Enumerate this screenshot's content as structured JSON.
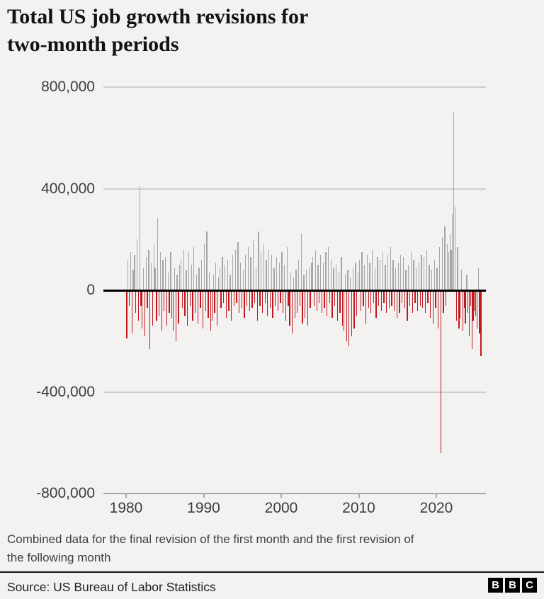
{
  "header": {
    "title_lines": [
      "Total US job growth revisions for",
      "two-month periods"
    ]
  },
  "footnote": {
    "lines": [
      "Combined data for the final revision of the first month and the first revision of",
      "the following month"
    ]
  },
  "footer": {
    "source": "Source: US Bureau of Labor Statistics",
    "logo_letters": [
      "B",
      "B",
      "C"
    ]
  },
  "colors": {
    "background": "#f3f2f1",
    "positive_bar": "#a6a5a3",
    "negative_bar": "#c0181e",
    "zero_line": "#000000",
    "gridline": "#cfcecc",
    "axis_bottom": "#a9a8a6"
  },
  "chart_data": {
    "type": "bar",
    "title": "Total US job growth revisions for two-month periods",
    "xlabel": "",
    "ylabel": "",
    "legend": "none",
    "grid": "horizontal",
    "x_axis": {
      "ticks": [
        1980,
        1990,
        2000,
        2010,
        2020
      ],
      "range_years": [
        1979.8,
        2026.2
      ]
    },
    "y_axis": {
      "ticks": [
        {
          "label": "800,000",
          "value": 800000
        },
        {
          "label": "400,000",
          "value": 400000
        },
        {
          "label": "0",
          "value": 0
        },
        {
          "label": "-400,000",
          "value": -400000
        },
        {
          "label": "-800,000",
          "value": -800000
        }
      ],
      "range": [
        -800000,
        800000
      ]
    },
    "series_unit": "jobs, thousands (two-month revision totals, estimated from pixels)",
    "start_year": 1980,
    "periods_per_year": 6,
    "positive_color": "#a6a5a3",
    "negative_color": "#c0181e",
    "values_thousands": [
      -190,
      120,
      -60,
      150,
      -170,
      80,
      140,
      -90,
      200,
      -120,
      410,
      -60,
      -150,
      90,
      -180,
      130,
      -70,
      160,
      -230,
      110,
      -140,
      180,
      90,
      -120,
      285,
      -100,
      150,
      -160,
      120,
      -80,
      130,
      -140,
      70,
      -90,
      150,
      -110,
      -160,
      90,
      -200,
      60,
      -130,
      100,
      120,
      -70,
      160,
      -100,
      80,
      -140,
      150,
      -60,
      100,
      -120,
      170,
      -90,
      60,
      -130,
      90,
      -70,
      120,
      -150,
      180,
      -80,
      230,
      -110,
      70,
      -160,
      -120,
      60,
      -90,
      110,
      -140,
      50,
      90,
      -70,
      130,
      -50,
      100,
      -110,
      120,
      -80,
      60,
      -120,
      140,
      -60,
      160,
      -50,
      190,
      -90,
      110,
      -70,
      80,
      -110,
      140,
      -60,
      170,
      -80,
      130,
      -70,
      200,
      -50,
      90,
      -120,
      230,
      -60,
      150,
      -90,
      180,
      -50,
      120,
      -100,
      160,
      -70,
      140,
      -110,
      90,
      -60,
      130,
      -80,
      110,
      -50,
      150,
      -90,
      100,
      -120,
      170,
      -60,
      -140,
      70,
      -170,
      50,
      -110,
      80,
      -90,
      120,
      -60,
      223,
      -130,
      60,
      -110,
      80,
      -140,
      90,
      -70,
      110,
      130,
      -60,
      160,
      -80,
      100,
      -50,
      140,
      -90,
      110,
      -70,
      150,
      -100,
      170,
      -50,
      120,
      -110,
      90,
      -60,
      100,
      -120,
      70,
      -90,
      130,
      -140,
      -160,
      60,
      -200,
      80,
      -220,
      50,
      -180,
      90,
      -150,
      110,
      -100,
      70,
      120,
      -80,
      150,
      -60,
      100,
      -130,
      140,
      -70,
      110,
      -90,
      160,
      -50,
      90,
      -110,
      130,
      -60,
      120,
      -80,
      150,
      -50,
      100,
      -90,
      140,
      -70,
      170,
      -60,
      120,
      -80,
      90,
      -110,
      110,
      -90,
      140,
      -50,
      130,
      -70,
      80,
      -120,
      100,
      -60,
      150,
      -90,
      120,
      -50,
      90,
      -80,
      110,
      -60,
      140,
      -70,
      130,
      -90,
      160,
      -50,
      100,
      -110,
      80,
      -130,
      120,
      -70,
      90,
      -150,
      170,
      -640,
      210,
      -90,
      250,
      -60,
      180,
      150,
      220,
      160,
      300,
      700,
      330,
      -120,
      170,
      -150,
      -110,
      80,
      -160,
      -70,
      -130,
      60,
      -90,
      -180,
      -60,
      -230,
      -120,
      -80,
      -100,
      -150,
      90,
      -170,
      -258
    ]
  }
}
